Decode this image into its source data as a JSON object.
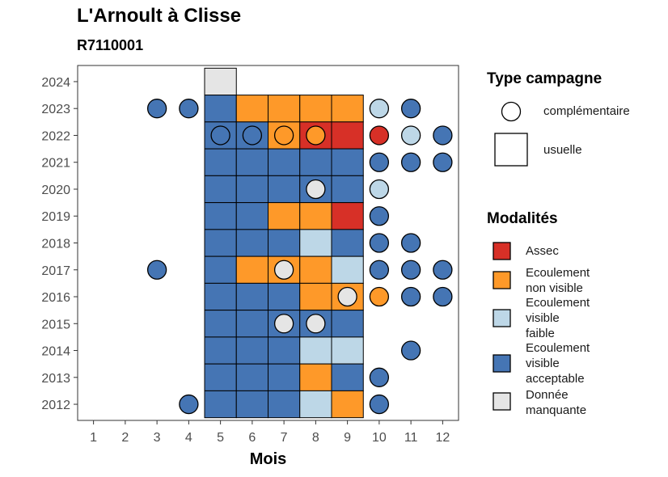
{
  "chart_data": {
    "type": "heatmap",
    "title": "L'Arnoult à Clisse",
    "subtitle": "R7110001",
    "xlabel": "Mois",
    "ylabel": "",
    "x_ticks": [
      "1",
      "2",
      "3",
      "4",
      "5",
      "6",
      "7",
      "8",
      "9",
      "10",
      "11",
      "12"
    ],
    "y_ticks": [
      "2012",
      "2013",
      "2014",
      "2015",
      "2016",
      "2017",
      "2018",
      "2019",
      "2020",
      "2021",
      "2022",
      "2023",
      "2024"
    ],
    "xlim": [
      0.5,
      12.5
    ],
    "ylim": [
      2011.4,
      2024.6
    ],
    "colors": {
      "assec": "#d73027",
      "non_visible": "#fe9929",
      "faible": "#bdd7e7",
      "acceptable": "#4575b4",
      "manquante": "#e5e5e5"
    },
    "legend_shape": {
      "title": "Type campagne",
      "items": [
        {
          "label": "complémentaire",
          "shape": "circle"
        },
        {
          "label": "usuelle",
          "shape": "square"
        }
      ]
    },
    "legend_modalites": {
      "title": "Modalités",
      "items": [
        {
          "key": "assec",
          "label_lines": [
            "Assec"
          ]
        },
        {
          "key": "non_visible",
          "label_lines": [
            "Ecoulement",
            "non visible"
          ]
        },
        {
          "key": "faible",
          "label_lines": [
            "Ecoulement",
            "visible",
            "faible"
          ]
        },
        {
          "key": "acceptable",
          "label_lines": [
            "Ecoulement",
            "visible",
            "acceptable"
          ]
        },
        {
          "key": "manquante",
          "label_lines": [
            "Donnée",
            "manquante"
          ]
        }
      ]
    },
    "usuelle": [
      {
        "year": 2024,
        "month": 5,
        "m": "manquante"
      },
      {
        "year": 2023,
        "month": 5,
        "m": "acceptable"
      },
      {
        "year": 2023,
        "month": 6,
        "m": "non_visible"
      },
      {
        "year": 2023,
        "month": 7,
        "m": "non_visible"
      },
      {
        "year": 2023,
        "month": 8,
        "m": "non_visible"
      },
      {
        "year": 2023,
        "month": 9,
        "m": "non_visible"
      },
      {
        "year": 2022,
        "month": 5,
        "m": "acceptable"
      },
      {
        "year": 2022,
        "month": 6,
        "m": "acceptable"
      },
      {
        "year": 2022,
        "month": 7,
        "m": "non_visible"
      },
      {
        "year": 2022,
        "month": 8,
        "m": "assec"
      },
      {
        "year": 2022,
        "month": 9,
        "m": "assec"
      },
      {
        "year": 2021,
        "month": 5,
        "m": "acceptable"
      },
      {
        "year": 2021,
        "month": 6,
        "m": "acceptable"
      },
      {
        "year": 2021,
        "month": 7,
        "m": "acceptable"
      },
      {
        "year": 2021,
        "month": 8,
        "m": "acceptable"
      },
      {
        "year": 2021,
        "month": 9,
        "m": "acceptable"
      },
      {
        "year": 2020,
        "month": 5,
        "m": "acceptable"
      },
      {
        "year": 2020,
        "month": 6,
        "m": "acceptable"
      },
      {
        "year": 2020,
        "month": 7,
        "m": "acceptable"
      },
      {
        "year": 2020,
        "month": 8,
        "m": "acceptable"
      },
      {
        "year": 2020,
        "month": 9,
        "m": "acceptable"
      },
      {
        "year": 2019,
        "month": 5,
        "m": "acceptable"
      },
      {
        "year": 2019,
        "month": 6,
        "m": "acceptable"
      },
      {
        "year": 2019,
        "month": 7,
        "m": "non_visible"
      },
      {
        "year": 2019,
        "month": 8,
        "m": "non_visible"
      },
      {
        "year": 2019,
        "month": 9,
        "m": "assec"
      },
      {
        "year": 2018,
        "month": 5,
        "m": "acceptable"
      },
      {
        "year": 2018,
        "month": 6,
        "m": "acceptable"
      },
      {
        "year": 2018,
        "month": 7,
        "m": "acceptable"
      },
      {
        "year": 2018,
        "month": 8,
        "m": "faible"
      },
      {
        "year": 2018,
        "month": 9,
        "m": "acceptable"
      },
      {
        "year": 2017,
        "month": 5,
        "m": "acceptable"
      },
      {
        "year": 2017,
        "month": 6,
        "m": "non_visible"
      },
      {
        "year": 2017,
        "month": 7,
        "m": "non_visible"
      },
      {
        "year": 2017,
        "month": 8,
        "m": "non_visible"
      },
      {
        "year": 2017,
        "month": 9,
        "m": "faible"
      },
      {
        "year": 2016,
        "month": 5,
        "m": "acceptable"
      },
      {
        "year": 2016,
        "month": 6,
        "m": "acceptable"
      },
      {
        "year": 2016,
        "month": 7,
        "m": "acceptable"
      },
      {
        "year": 2016,
        "month": 8,
        "m": "non_visible"
      },
      {
        "year": 2016,
        "month": 9,
        "m": "non_visible"
      },
      {
        "year": 2015,
        "month": 5,
        "m": "acceptable"
      },
      {
        "year": 2015,
        "month": 6,
        "m": "acceptable"
      },
      {
        "year": 2015,
        "month": 7,
        "m": "acceptable"
      },
      {
        "year": 2015,
        "month": 8,
        "m": "acceptable"
      },
      {
        "year": 2015,
        "month": 9,
        "m": "acceptable"
      },
      {
        "year": 2014,
        "month": 5,
        "m": "acceptable"
      },
      {
        "year": 2014,
        "month": 6,
        "m": "acceptable"
      },
      {
        "year": 2014,
        "month": 7,
        "m": "acceptable"
      },
      {
        "year": 2014,
        "month": 8,
        "m": "faible"
      },
      {
        "year": 2014,
        "month": 9,
        "m": "faible"
      },
      {
        "year": 2013,
        "month": 5,
        "m": "acceptable"
      },
      {
        "year": 2013,
        "month": 6,
        "m": "acceptable"
      },
      {
        "year": 2013,
        "month": 7,
        "m": "acceptable"
      },
      {
        "year": 2013,
        "month": 8,
        "m": "non_visible"
      },
      {
        "year": 2013,
        "month": 9,
        "m": "acceptable"
      },
      {
        "year": 2012,
        "month": 5,
        "m": "acceptable"
      },
      {
        "year": 2012,
        "month": 6,
        "m": "acceptable"
      },
      {
        "year": 2012,
        "month": 7,
        "m": "acceptable"
      },
      {
        "year": 2012,
        "month": 8,
        "m": "faible"
      },
      {
        "year": 2012,
        "month": 9,
        "m": "non_visible"
      }
    ],
    "complementaire": [
      {
        "year": 2023,
        "month": 3,
        "m": "acceptable"
      },
      {
        "year": 2023,
        "month": 4,
        "m": "acceptable"
      },
      {
        "year": 2023,
        "month": 10,
        "m": "faible"
      },
      {
        "year": 2023,
        "month": 11,
        "m": "acceptable"
      },
      {
        "year": 2022,
        "month": 5,
        "m": "acceptable"
      },
      {
        "year": 2022,
        "month": 6,
        "m": "acceptable"
      },
      {
        "year": 2022,
        "month": 7,
        "m": "non_visible"
      },
      {
        "year": 2022,
        "month": 8,
        "m": "non_visible"
      },
      {
        "year": 2022,
        "month": 10,
        "m": "assec"
      },
      {
        "year": 2022,
        "month": 11,
        "m": "faible"
      },
      {
        "year": 2022,
        "month": 12,
        "m": "acceptable"
      },
      {
        "year": 2021,
        "month": 10,
        "m": "acceptable"
      },
      {
        "year": 2021,
        "month": 11,
        "m": "acceptable"
      },
      {
        "year": 2021,
        "month": 12,
        "m": "acceptable"
      },
      {
        "year": 2020,
        "month": 8,
        "m": "manquante"
      },
      {
        "year": 2020,
        "month": 10,
        "m": "faible"
      },
      {
        "year": 2019,
        "month": 10,
        "m": "acceptable"
      },
      {
        "year": 2018,
        "month": 10,
        "m": "acceptable"
      },
      {
        "year": 2018,
        "month": 11,
        "m": "acceptable"
      },
      {
        "year": 2017,
        "month": 3,
        "m": "acceptable"
      },
      {
        "year": 2017,
        "month": 7,
        "m": "manquante"
      },
      {
        "year": 2017,
        "month": 10,
        "m": "acceptable"
      },
      {
        "year": 2017,
        "month": 11,
        "m": "acceptable"
      },
      {
        "year": 2017,
        "month": 12,
        "m": "acceptable"
      },
      {
        "year": 2016,
        "month": 9,
        "m": "manquante"
      },
      {
        "year": 2016,
        "month": 10,
        "m": "non_visible"
      },
      {
        "year": 2016,
        "month": 11,
        "m": "acceptable"
      },
      {
        "year": 2016,
        "month": 12,
        "m": "acceptable"
      },
      {
        "year": 2015,
        "month": 7,
        "m": "manquante"
      },
      {
        "year": 2015,
        "month": 8,
        "m": "manquante"
      },
      {
        "year": 2014,
        "month": 11,
        "m": "acceptable"
      },
      {
        "year": 2013,
        "month": 10,
        "m": "acceptable"
      },
      {
        "year": 2012,
        "month": 4,
        "m": "acceptable"
      },
      {
        "year": 2012,
        "month": 10,
        "m": "acceptable"
      }
    ]
  }
}
